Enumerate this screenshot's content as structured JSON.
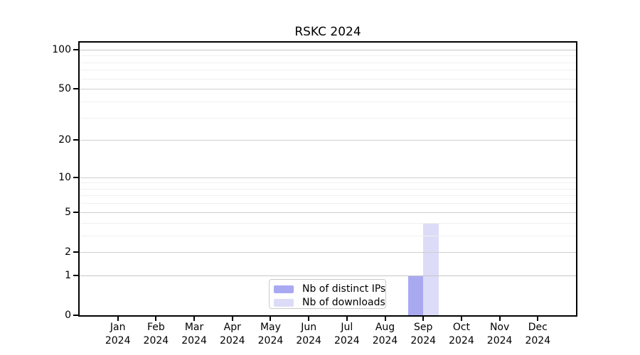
{
  "title": "RSKC 2024",
  "chart_data": {
    "type": "bar",
    "title": "RSKC 2024",
    "x_ticks": [
      {
        "month": "Jan",
        "year": "2024"
      },
      {
        "month": "Feb",
        "year": "2024"
      },
      {
        "month": "Mar",
        "year": "2024"
      },
      {
        "month": "Apr",
        "year": "2024"
      },
      {
        "month": "May",
        "year": "2024"
      },
      {
        "month": "Jun",
        "year": "2024"
      },
      {
        "month": "Jul",
        "year": "2024"
      },
      {
        "month": "Aug",
        "year": "2024"
      },
      {
        "month": "Sep",
        "year": "2024"
      },
      {
        "month": "Oct",
        "year": "2024"
      },
      {
        "month": "Nov",
        "year": "2024"
      },
      {
        "month": "Dec",
        "year": "2024"
      }
    ],
    "series": [
      {
        "name": "Nb of distinct IPs",
        "color": "#a9a9f2",
        "values": [
          0,
          0,
          0,
          0,
          0,
          0,
          0,
          0,
          1,
          0,
          0,
          0
        ]
      },
      {
        "name": "Nb of downloads",
        "color": "#dcdcf8",
        "values": [
          0,
          0,
          0,
          0,
          0,
          0,
          0,
          0,
          4,
          0,
          0,
          0
        ]
      }
    ],
    "y_scale": "log1p",
    "ylim": [
      0,
      113
    ],
    "y_major_ticks": [
      0,
      1,
      2,
      5,
      10,
      20,
      50,
      100
    ],
    "y_minor_ticks": [
      3,
      4,
      6,
      7,
      8,
      9,
      30,
      40,
      60,
      70,
      80,
      90
    ],
    "grid": "horizontal",
    "legend_position": "lower-center-inside",
    "grid_major_color": "#cfcfcf",
    "grid_minor_color": "#f0f0f0",
    "grid_unit_color": "#c6c6c6"
  }
}
